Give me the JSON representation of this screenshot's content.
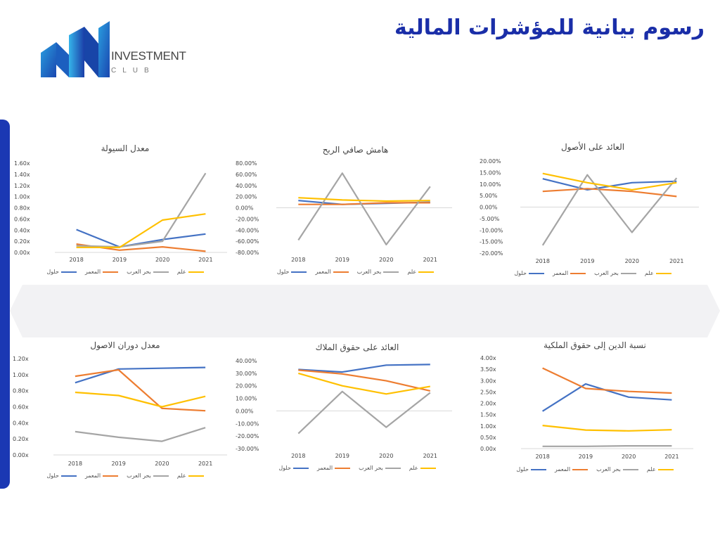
{
  "header": {
    "title": "رسوم بيانية للمؤشرات المالية"
  },
  "logo": {
    "line1": "INVESTMENT",
    "line2": "CLUB"
  },
  "colors": {
    "blue": "#4472c4",
    "orange": "#ed7d31",
    "gray": "#a5a5a5",
    "yellow": "#ffc000",
    "accent": "#1b38b3"
  },
  "chart_data": [
    {
      "type": "line",
      "title": "معدل السيولة",
      "x": [
        "2018",
        "2019",
        "2020",
        "2021"
      ],
      "yticks": [
        "1.60x",
        "1.40x",
        "1.20x",
        "1.00x",
        "0.80x",
        "0.60x",
        "0.40x",
        "0.20x",
        "0.00x"
      ],
      "ylim": [
        0,
        1.6
      ],
      "series": [
        {
          "name": "حلول",
          "values": [
            0.41,
            0.1,
            0.23,
            0.33
          ]
        },
        {
          "name": "المعمر",
          "values": [
            0.15,
            0.04,
            0.1,
            0.02
          ]
        },
        {
          "name": "بحر العرب",
          "values": [
            0.12,
            0.1,
            0.2,
            1.42
          ]
        },
        {
          "name": "علم",
          "values": [
            0.09,
            0.09,
            0.58,
            0.69
          ]
        }
      ]
    },
    {
      "type": "line",
      "title": "هامش صافي الربح",
      "x": [
        "2018",
        "2019",
        "2020",
        "2021"
      ],
      "yticks": [
        "80.00%",
        "60.00%",
        "40.00%",
        "20.00%",
        "0.00%",
        "-20.00%",
        "-40.00%",
        "-60.00%",
        "-80.00%"
      ],
      "ylim": [
        -80,
        80
      ],
      "series": [
        {
          "name": "حلول",
          "values": [
            13,
            6,
            8,
            10
          ]
        },
        {
          "name": "المعمر",
          "values": [
            6,
            6,
            9,
            9
          ]
        },
        {
          "name": "بحر العرب",
          "values": [
            -58,
            62,
            -66,
            38
          ]
        },
        {
          "name": "علم",
          "values": [
            18,
            14,
            12,
            13
          ]
        }
      ]
    },
    {
      "type": "line",
      "title": "العائد على الأصول",
      "x": [
        "2018",
        "2019",
        "2020",
        "2021"
      ],
      "yticks": [
        "20.00%",
        "15.00%",
        "10.00%",
        "5.00%",
        "0.00%",
        "-5.00%",
        "-10.00%",
        "-15.00%",
        "-20.00%"
      ],
      "ylim": [
        -20,
        20
      ],
      "series": [
        {
          "name": "حلول",
          "values": [
            12.3,
            7.5,
            10.6,
            11.2
          ]
        },
        {
          "name": "المعمر",
          "values": [
            6.8,
            8.0,
            6.8,
            4.6
          ]
        },
        {
          "name": "بحر العرب",
          "values": [
            -16.6,
            14.0,
            -11.0,
            12.6
          ]
        },
        {
          "name": "علم",
          "values": [
            14.6,
            10.6,
            7.5,
            10.6
          ]
        }
      ]
    },
    {
      "type": "line",
      "title": "معدل دوران الاصول",
      "x": [
        "2018",
        "2019",
        "2020",
        "2021"
      ],
      "yticks": [
        "1.20x",
        "1.00x",
        "0.80x",
        "0.60x",
        "0.40x",
        "0.20x",
        "0.00x"
      ],
      "ylim": [
        0,
        1.2
      ],
      "series": [
        {
          "name": "حلول",
          "values": [
            0.9,
            1.07,
            1.08,
            1.09
          ]
        },
        {
          "name": "المعمر",
          "values": [
            0.98,
            1.06,
            0.58,
            0.55
          ]
        },
        {
          "name": "بحر العرب",
          "values": [
            0.29,
            0.22,
            0.17,
            0.34
          ]
        },
        {
          "name": "علم",
          "values": [
            0.78,
            0.74,
            0.6,
            0.73
          ]
        }
      ]
    },
    {
      "type": "line",
      "title": "العائد على حقوق الملاك",
      "x": [
        "2018",
        "2019",
        "2020",
        "2021"
      ],
      "yticks": [
        "40.00%",
        "30.00%",
        "20.00%",
        "10.00%",
        "0.00%",
        "-10.00%",
        "-20.00%",
        "-30.00%"
      ],
      "ylim": [
        -30,
        40
      ],
      "series": [
        {
          "name": "حلول",
          "values": [
            33,
            31,
            36.5,
            37
          ]
        },
        {
          "name": "المعمر",
          "values": [
            32.5,
            29.5,
            24,
            16
          ]
        },
        {
          "name": "بحر العرب",
          "values": [
            -18,
            15.5,
            -13,
            14.5
          ]
        },
        {
          "name": "علم",
          "values": [
            30,
            20,
            13.5,
            19.5
          ]
        }
      ]
    },
    {
      "type": "line",
      "title": "نسبة الدين إلى حقوق الملكية",
      "x": [
        "2018",
        "2019",
        "2020",
        "2021"
      ],
      "yticks": [
        "4.00x",
        "3.50x",
        "3.00x",
        "2.50x",
        "2.00x",
        "1.50x",
        "1.00x",
        "0.50x",
        "0.00x"
      ],
      "ylim": [
        0,
        4
      ],
      "series": [
        {
          "name": "حلول",
          "values": [
            1.65,
            2.85,
            2.27,
            2.15
          ]
        },
        {
          "name": "المعمر",
          "values": [
            3.55,
            2.65,
            2.52,
            2.45
          ]
        },
        {
          "name": "بحر العرب",
          "values": [
            0.1,
            0.1,
            0.12,
            0.12
          ]
        },
        {
          "name": "علم",
          "values": [
            1.02,
            0.82,
            0.78,
            0.83
          ]
        }
      ]
    }
  ]
}
